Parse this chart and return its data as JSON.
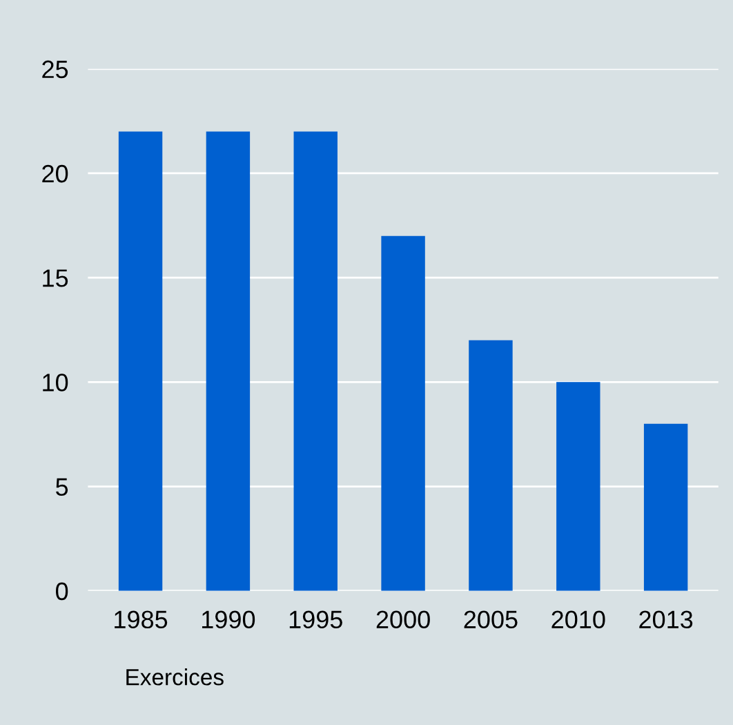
{
  "chart_data": {
    "type": "bar",
    "xlabel": "Exercices",
    "categories": [
      "1985",
      "1990",
      "1995",
      "2000",
      "2005",
      "2010",
      "2013"
    ],
    "values": [
      22,
      22,
      22,
      17,
      12,
      10,
      8
    ],
    "color": "#0060d0",
    "ylim": [
      0,
      25
    ],
    "yticks": [
      0,
      5,
      10,
      15,
      20,
      25
    ],
    "grid": "y",
    "legend": false
  }
}
